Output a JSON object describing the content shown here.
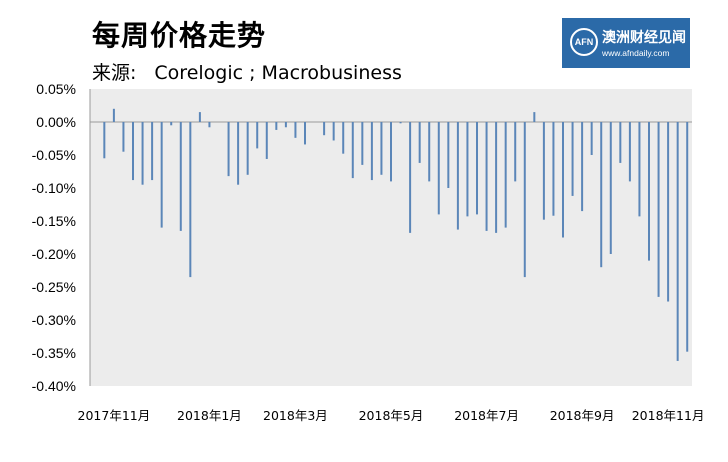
{
  "title": "每周价格走势",
  "source": {
    "label": "来源:",
    "text": "Corelogic ; Macrobusiness"
  },
  "logo": {
    "emblem": "AFN",
    "brand": "澳洲财经见闻",
    "url": "www.afndaily.com"
  },
  "colors": {
    "plot_bg": "#ececec",
    "bar": "#5b86b8",
    "axis": "#9a9a9a",
    "logo_bg": "#2b6aa8"
  },
  "chart_data": {
    "type": "bar",
    "title": "每周价格走势",
    "xlabel": "",
    "ylabel": "",
    "ylim": [
      -0.4,
      0.05
    ],
    "yticks": [
      0.05,
      0.0,
      -0.05,
      -0.1,
      -0.15,
      -0.2,
      -0.25,
      -0.3,
      -0.35,
      -0.4
    ],
    "ytick_labels": [
      "0.05%",
      "0.00%",
      "-0.05%",
      "-0.10%",
      "-0.15%",
      "-0.20%",
      "-0.25%",
      "-0.30%",
      "-0.35%",
      "-0.40%"
    ],
    "x_tick_labels": [
      "2017年11月",
      "2018年1月",
      "2018年3月",
      "2018年5月",
      "2018年7月",
      "2018年9月",
      "2018年11月"
    ],
    "x_tick_index": [
      2,
      12,
      21,
      31,
      41,
      51,
      60
    ],
    "grid": false,
    "legend": "none",
    "series": [
      {
        "values": [
          0,
          -0.055,
          0.02,
          -0.045,
          -0.088,
          -0.095,
          -0.088,
          -0.16,
          -0.005,
          -0.165,
          -0.235,
          0.015,
          -0.008,
          0,
          -0.082,
          -0.095,
          -0.08,
          -0.04,
          -0.056,
          -0.012,
          -0.008,
          -0.024,
          -0.034,
          0,
          -0.02,
          -0.028,
          -0.048,
          -0.085,
          -0.065,
          -0.088,
          -0.08,
          -0.09,
          -0.002,
          -0.168,
          -0.062,
          -0.09,
          -0.14,
          -0.1,
          -0.163,
          -0.143,
          -0.14,
          -0.165,
          -0.168,
          -0.16,
          -0.09,
          -0.235,
          0.015,
          -0.148,
          -0.142,
          -0.175,
          -0.112,
          -0.135,
          -0.05,
          -0.22,
          -0.2,
          -0.062,
          -0.09,
          -0.143,
          -0.21,
          -0.265,
          -0.272,
          -0.362,
          -0.348
        ]
      }
    ]
  }
}
